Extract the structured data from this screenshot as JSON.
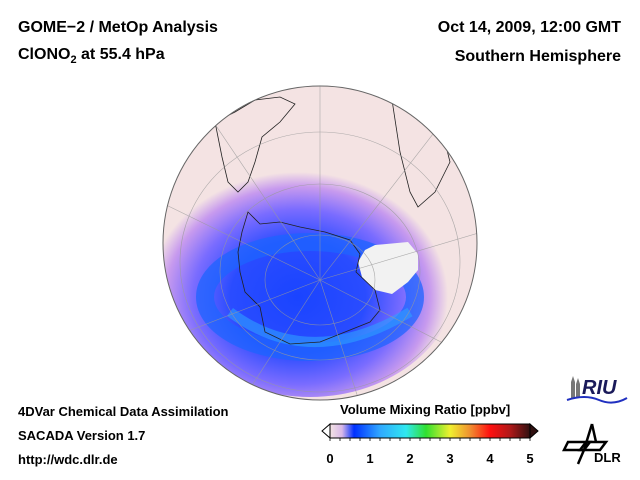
{
  "header": {
    "title_line1": "GOME−2 / MetOp Analysis",
    "species_main": "ClONO",
    "species_sub": "2",
    "species_rest": " at 55.4 hPa",
    "datetime": "Oct 14, 2009, 12:00 GMT",
    "region": "Southern Hemisphere"
  },
  "footer": {
    "line1": "4DVar Chemical Data Assimilation",
    "line2": "SACADA Version 1.7",
    "line3": "http://wdc.dlr.de"
  },
  "colorbar": {
    "title": "Volume Mixing Ratio [ppbv]",
    "min": 0,
    "max": 5,
    "tick_labels": [
      "0",
      "1",
      "2",
      "3",
      "4",
      "5"
    ],
    "colors": [
      "#f3e3e3",
      "#c8a0e0",
      "#0030ff",
      "#30e0f0",
      "#30e030",
      "#f0f030",
      "#f0a030",
      "#ff1010",
      "#c01010",
      "#301010"
    ]
  },
  "map": {
    "projection": "orthographic",
    "background_color": "#f4e3e3",
    "low_value_color": "#1a3cff",
    "mid_value_color": "#8a72ff",
    "missing_data_color": "#f2f2f2"
  },
  "logos": {
    "riu_text": "RIU",
    "dlr_text": "DLR"
  }
}
